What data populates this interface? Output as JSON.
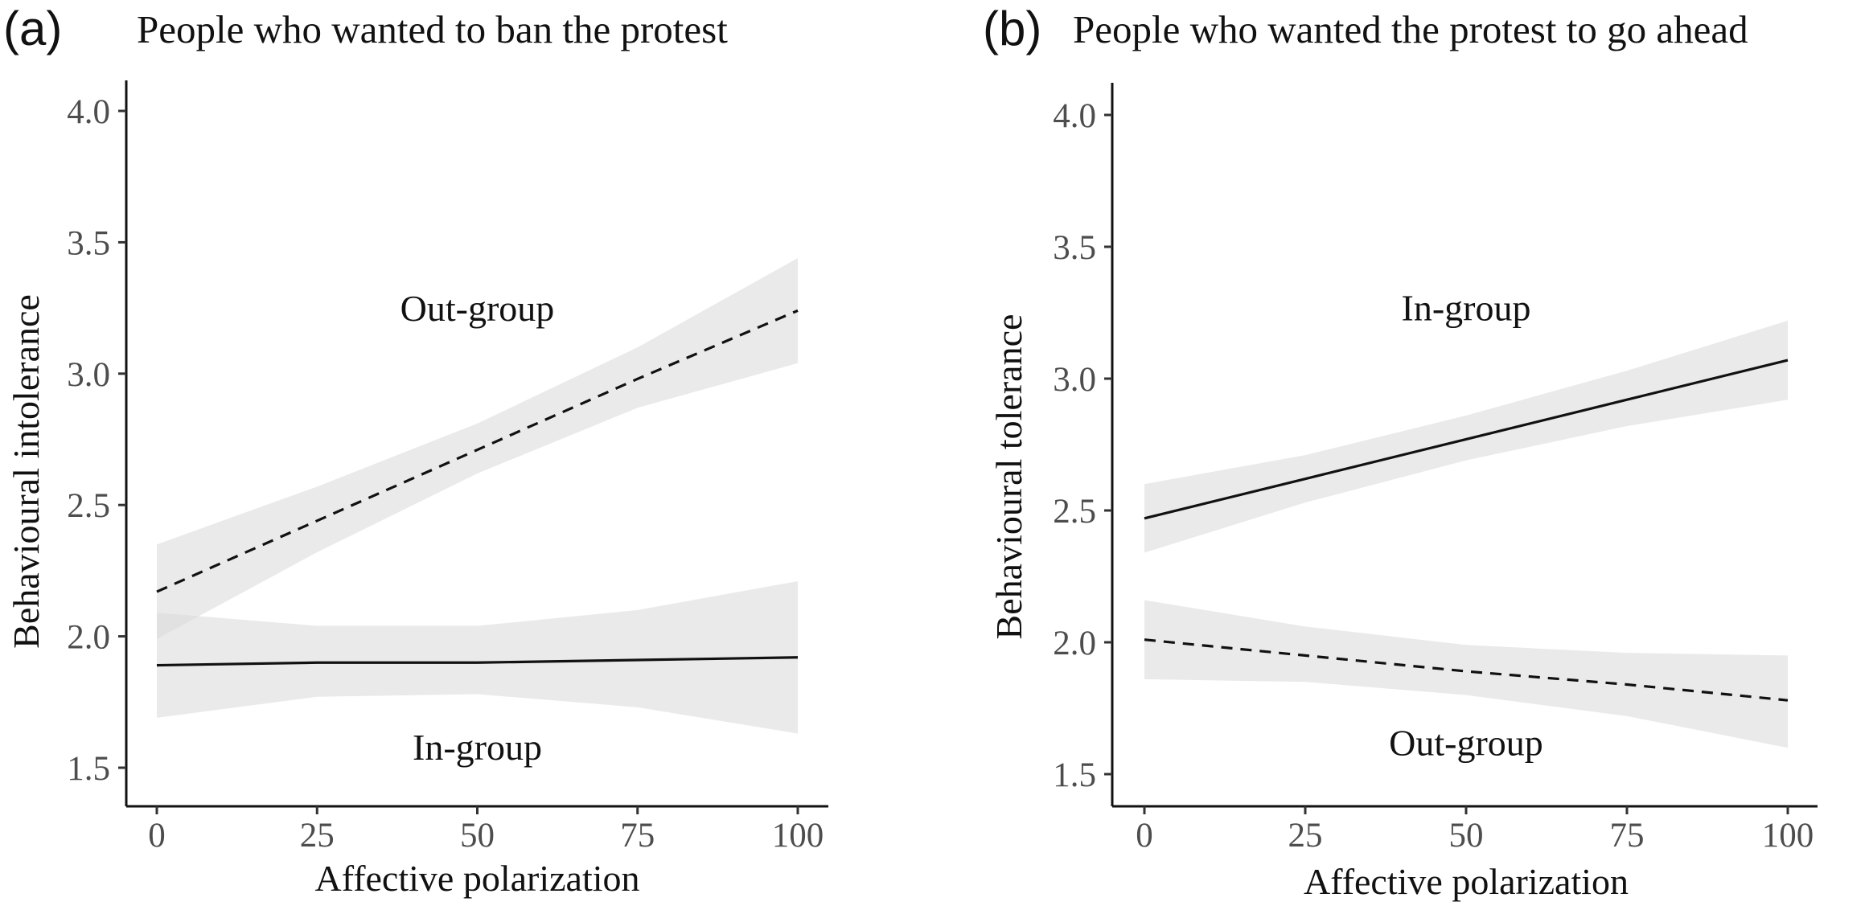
{
  "chart_data": [
    {
      "type": "line",
      "panel_label": "(a)",
      "title": "People who wanted to ban the protest",
      "xlabel": "Affective polarization",
      "ylabel": "Behavioural intolerance",
      "xlim": [
        0,
        100
      ],
      "ylim": [
        1.5,
        4.0
      ],
      "x_ticks": [
        "0",
        "25",
        "50",
        "75",
        "100"
      ],
      "y_ticks": [
        "1.5",
        "2.0",
        "2.5",
        "3.0",
        "3.5",
        "4.0"
      ],
      "grid": false,
      "annotations": [
        {
          "text": "Out-group",
          "x": 50,
          "y": 3.25
        },
        {
          "text": "In-group",
          "x": 50,
          "y": 1.58
        }
      ],
      "series": [
        {
          "label": "Out-group",
          "style": "dashed",
          "x": [
            0,
            25,
            50,
            75,
            100
          ],
          "y": [
            2.17,
            2.44,
            2.71,
            2.98,
            3.24
          ],
          "ci_lower": [
            1.99,
            2.32,
            2.62,
            2.87,
            3.04
          ],
          "ci_upper": [
            2.35,
            2.57,
            2.81,
            3.1,
            3.44
          ]
        },
        {
          "label": "In-group",
          "style": "solid",
          "x": [
            0,
            25,
            50,
            75,
            100
          ],
          "y": [
            1.89,
            1.9,
            1.9,
            1.91,
            1.92
          ],
          "ci_lower": [
            1.69,
            1.77,
            1.78,
            1.73,
            1.63
          ],
          "ci_upper": [
            2.09,
            2.04,
            2.04,
            2.1,
            2.21
          ]
        }
      ]
    },
    {
      "type": "line",
      "panel_label": "(b)",
      "title": "People who wanted the protest to go ahead",
      "xlabel": "Affective polarization",
      "ylabel": "Behavioural tolerance",
      "xlim": [
        0,
        100
      ],
      "ylim": [
        1.5,
        4.0
      ],
      "x_ticks": [
        "0",
        "25",
        "50",
        "75",
        "100"
      ],
      "y_ticks": [
        "1.5",
        "2.0",
        "2.5",
        "3.0",
        "3.5",
        "4.0"
      ],
      "grid": false,
      "annotations": [
        {
          "text": "In-group",
          "x": 50,
          "y": 3.27
        },
        {
          "text": "Out-group",
          "x": 50,
          "y": 1.62
        }
      ],
      "series": [
        {
          "label": "In-group",
          "style": "solid",
          "x": [
            0,
            25,
            50,
            75,
            100
          ],
          "y": [
            2.47,
            2.62,
            2.77,
            2.92,
            3.07
          ],
          "ci_lower": [
            2.34,
            2.53,
            2.69,
            2.82,
            2.92
          ],
          "ci_upper": [
            2.6,
            2.71,
            2.86,
            3.03,
            3.22
          ]
        },
        {
          "label": "Out-group",
          "style": "dashed",
          "x": [
            0,
            25,
            50,
            75,
            100
          ],
          "y": [
            2.01,
            1.95,
            1.89,
            1.84,
            1.78
          ],
          "ci_lower": [
            1.86,
            1.85,
            1.8,
            1.72,
            1.6
          ],
          "ci_upper": [
            2.16,
            2.06,
            1.99,
            1.96,
            1.95
          ]
        }
      ]
    }
  ]
}
